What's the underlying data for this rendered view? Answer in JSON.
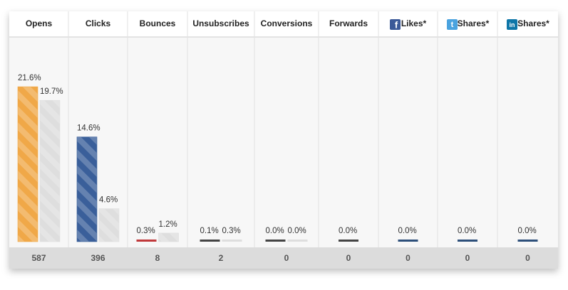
{
  "chart_data": {
    "type": "bar",
    "categories": [
      "Opens",
      "Clicks",
      "Bounces",
      "Unsubscribes",
      "Conversions",
      "Forwards",
      "Likes*",
      "Shares*",
      "Shares*"
    ],
    "series": [
      {
        "colors": [
          "#f0a848",
          "#3a5f9a",
          "#c0393b",
          "#444444",
          "#444444",
          "#444444",
          "#2d4f7a",
          "#2d4f7a",
          "#2d4f7a"
        ],
        "values": [
          21.6,
          14.6,
          0.3,
          0.1,
          0.0,
          0.0,
          0.0,
          0.0,
          0.0
        ],
        "value_labels": [
          "21.6%",
          "14.6%",
          "0.3%",
          "0.1%",
          "0.0%",
          "0.0%",
          "0.0%",
          "0.0%",
          "0.0%"
        ]
      },
      {
        "color": "#dedede",
        "values": [
          19.7,
          4.6,
          1.2,
          0.3,
          0.0,
          null,
          null,
          null,
          null
        ],
        "value_labels": [
          "19.7%",
          "4.6%",
          "1.2%",
          "0.3%",
          "0.0%",
          null,
          null,
          null,
          null
        ]
      }
    ],
    "counts": [
      587,
      396,
      8,
      2,
      0,
      0,
      0,
      0,
      0
    ]
  }
}
